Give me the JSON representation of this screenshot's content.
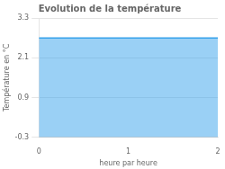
{
  "chart_data": {
    "type": "area",
    "title": "Evolution de la température",
    "xlabel": "heure par heure",
    "ylabel": "Température en °C",
    "x": [
      0,
      2
    ],
    "values": [
      2.7,
      2.7
    ],
    "xlim": [
      0,
      2
    ],
    "xticks": [
      0,
      1,
      2
    ],
    "ylim": [
      -0.3,
      3.3
    ],
    "yticks": [
      -0.3,
      0.9,
      2.1,
      3.3
    ],
    "grid": "y"
  }
}
